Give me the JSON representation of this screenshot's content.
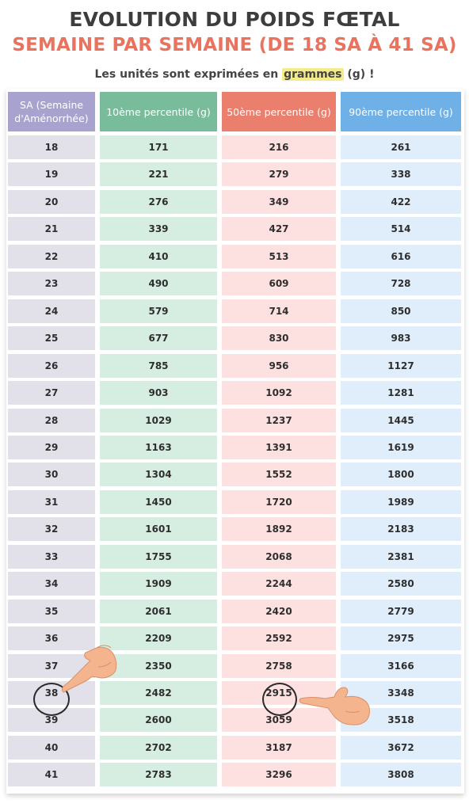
{
  "header": {
    "title_line1": "EVOLUTION DU POIDS FŒTAL",
    "title_line2": "SEMAINE PAR SEMAINE (DE 18 SA À 41 SA)",
    "subtitle_before": "Les unités sont exprimées en ",
    "subtitle_highlight": "grammes",
    "subtitle_after": " (g) !"
  },
  "table": {
    "columns": [
      "SA (Semaine d'Aménorrhée)",
      "10ème percentile (g)",
      "50ème percentile (g)",
      "90ème percentile (g)"
    ],
    "rows": [
      [
        "18",
        "171",
        "216",
        "261"
      ],
      [
        "19",
        "221",
        "279",
        "338"
      ],
      [
        "20",
        "276",
        "349",
        "422"
      ],
      [
        "21",
        "339",
        "427",
        "514"
      ],
      [
        "22",
        "410",
        "513",
        "616"
      ],
      [
        "23",
        "490",
        "609",
        "728"
      ],
      [
        "24",
        "579",
        "714",
        "850"
      ],
      [
        "25",
        "677",
        "830",
        "983"
      ],
      [
        "26",
        "785",
        "956",
        "1127"
      ],
      [
        "27",
        "903",
        "1092",
        "1281"
      ],
      [
        "28",
        "1029",
        "1237",
        "1445"
      ],
      [
        "29",
        "1163",
        "1391",
        "1619"
      ],
      [
        "30",
        "1304",
        "1552",
        "1800"
      ],
      [
        "31",
        "1450",
        "1720",
        "1989"
      ],
      [
        "32",
        "1601",
        "1892",
        "2183"
      ],
      [
        "33",
        "1755",
        "2068",
        "2381"
      ],
      [
        "34",
        "1909",
        "2244",
        "2580"
      ],
      [
        "35",
        "2061",
        "2420",
        "2779"
      ],
      [
        "36",
        "2209",
        "2592",
        "2975"
      ],
      [
        "37",
        "2350",
        "2758",
        "3166"
      ],
      [
        "38",
        "2482",
        "2915",
        "3348"
      ],
      [
        "39",
        "2600",
        "3059",
        "3518"
      ],
      [
        "40",
        "2702",
        "3187",
        "3672"
      ],
      [
        "41",
        "2783",
        "3296",
        "3808"
      ]
    ]
  },
  "colors": {
    "title_dark": "#3d3d3d",
    "title_accent": "#e8735e",
    "highlight": "#f4ec8a",
    "col_sa": "#a8a2cf",
    "col_p10": "#79bc9c",
    "col_p50": "#ea7f6e",
    "col_p90": "#6fb0e7"
  },
  "annotations": {
    "circled_cells": [
      "38",
      "2915"
    ],
    "icons": [
      "pointing-hand-icon",
      "pointing-hand-icon"
    ]
  }
}
